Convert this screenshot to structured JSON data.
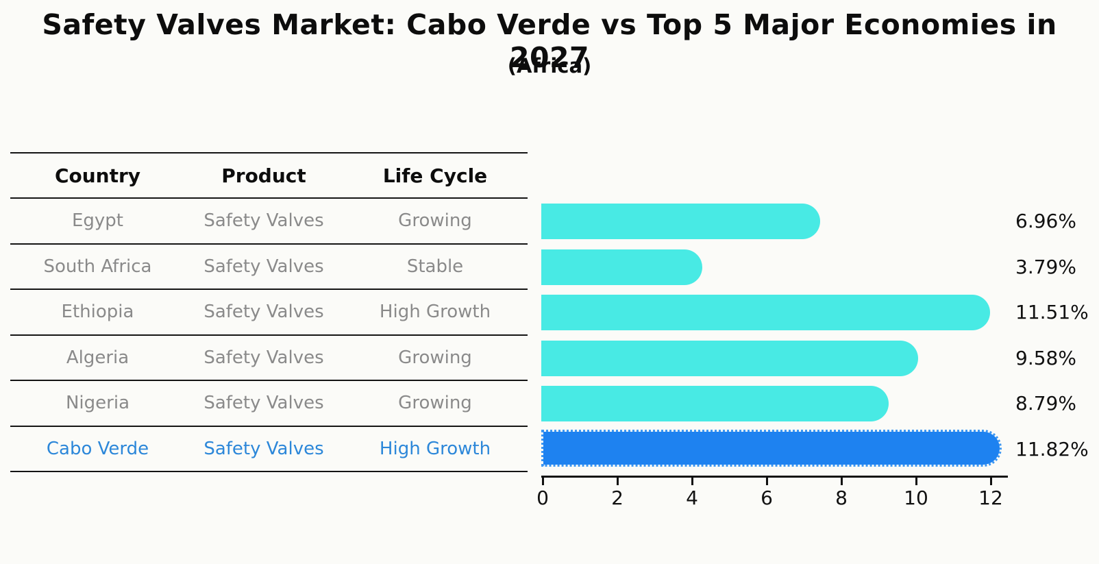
{
  "title": "Safety Valves Market: Cabo Verde vs Top 5 Major Economies in 2027",
  "subtitle": "(Africa)",
  "table": {
    "headers": [
      "Country",
      "Product",
      "Life Cycle"
    ],
    "rows": [
      {
        "country": "Egypt",
        "product": "Safety Valves",
        "life_cycle": "Growing",
        "highlight": false
      },
      {
        "country": "South Africa",
        "product": "Safety Valves",
        "life_cycle": "Stable",
        "highlight": false
      },
      {
        "country": "Ethiopia",
        "product": "Safety Valves",
        "life_cycle": "High Growth",
        "highlight": false
      },
      {
        "country": "Algeria",
        "product": "Safety Valves",
        "life_cycle": "Growing",
        "highlight": false
      },
      {
        "country": "Nigeria",
        "product": "Safety Valves",
        "life_cycle": "Growing",
        "highlight": true
      }
    ],
    "highlight_row": {
      "country": "Cabo Verde",
      "product": "Safety Valves",
      "life_cycle": "High Growth"
    }
  },
  "chart_data": {
    "type": "bar",
    "orientation": "horizontal",
    "categories": [
      "Egypt",
      "South Africa",
      "Ethiopia",
      "Algeria",
      "Nigeria",
      "Cabo Verde"
    ],
    "values": [
      6.96,
      3.79,
      11.51,
      9.58,
      8.79,
      11.82
    ],
    "value_labels": [
      "6.96%",
      "3.79%",
      "11.51%",
      "9.58%",
      "8.79%",
      "11.82%"
    ],
    "title": "Safety Valves Market: Cabo Verde vs Top 5 Major Economies in 2027 (Africa)",
    "xlabel": "",
    "ylabel": "",
    "xlim": [
      0,
      12.5
    ],
    "x_ticks": [
      0,
      2,
      4,
      6,
      8,
      10,
      12
    ],
    "grid": false,
    "legend_position": "none",
    "highlight_index": 5,
    "bar_color_default": "#48eae4",
    "bar_color_highlight": "#1e82f0"
  },
  "colors": {
    "row_text": "#8a8a8a",
    "highlight_text": "#2c87d9",
    "bar_default": "#48eae4",
    "bar_highlight": "#1e82f0",
    "axis": "#111111",
    "title_text": "#0d0d0d"
  }
}
